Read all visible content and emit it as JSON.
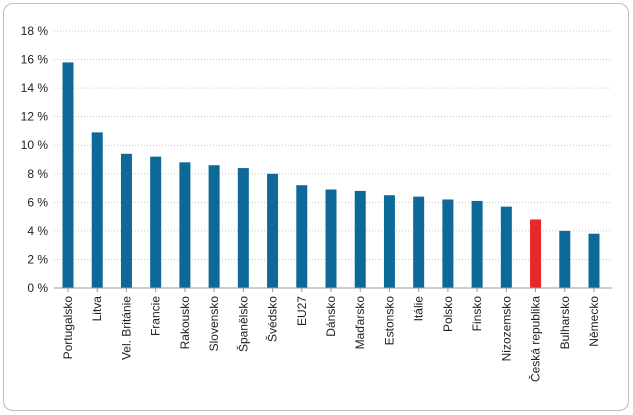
{
  "chart_data": {
    "type": "bar",
    "title": "",
    "xlabel": "",
    "ylabel": "",
    "ylim": [
      0,
      18
    ],
    "y_ticks": [
      0,
      2,
      4,
      6,
      8,
      10,
      12,
      14,
      16,
      18
    ],
    "y_tick_labels": [
      "0 %",
      "2 %",
      "4 %",
      "6 %",
      "8 %",
      "10 %",
      "12 %",
      "14 %",
      "16 %",
      "18 %"
    ],
    "grid": true,
    "legend": "none",
    "categories": [
      "Portugalsko",
      "Litva",
      "Vel. Británie",
      "Francie",
      "Rakousko",
      "Slovensko",
      "Španělsko",
      "Švédsko",
      "EU27",
      "Dánsko",
      "Maďarsko",
      "Estonsko",
      "Itálie",
      "Polsko",
      "Finsko",
      "Nizozemsko",
      "Česká republika",
      "Bulharsko",
      "Německo"
    ],
    "values": [
      15.8,
      10.9,
      9.4,
      9.2,
      8.8,
      8.6,
      8.4,
      8.0,
      7.2,
      6.9,
      6.8,
      6.5,
      6.4,
      6.2,
      6.1,
      5.7,
      4.8,
      4.0,
      3.8
    ],
    "colors": {
      "default": "#0d6a98",
      "highlight": "#e8272a",
      "highlight_category": "Česká republika",
      "grid": "#c8c8c8",
      "axis": "#9a9a9a"
    }
  }
}
